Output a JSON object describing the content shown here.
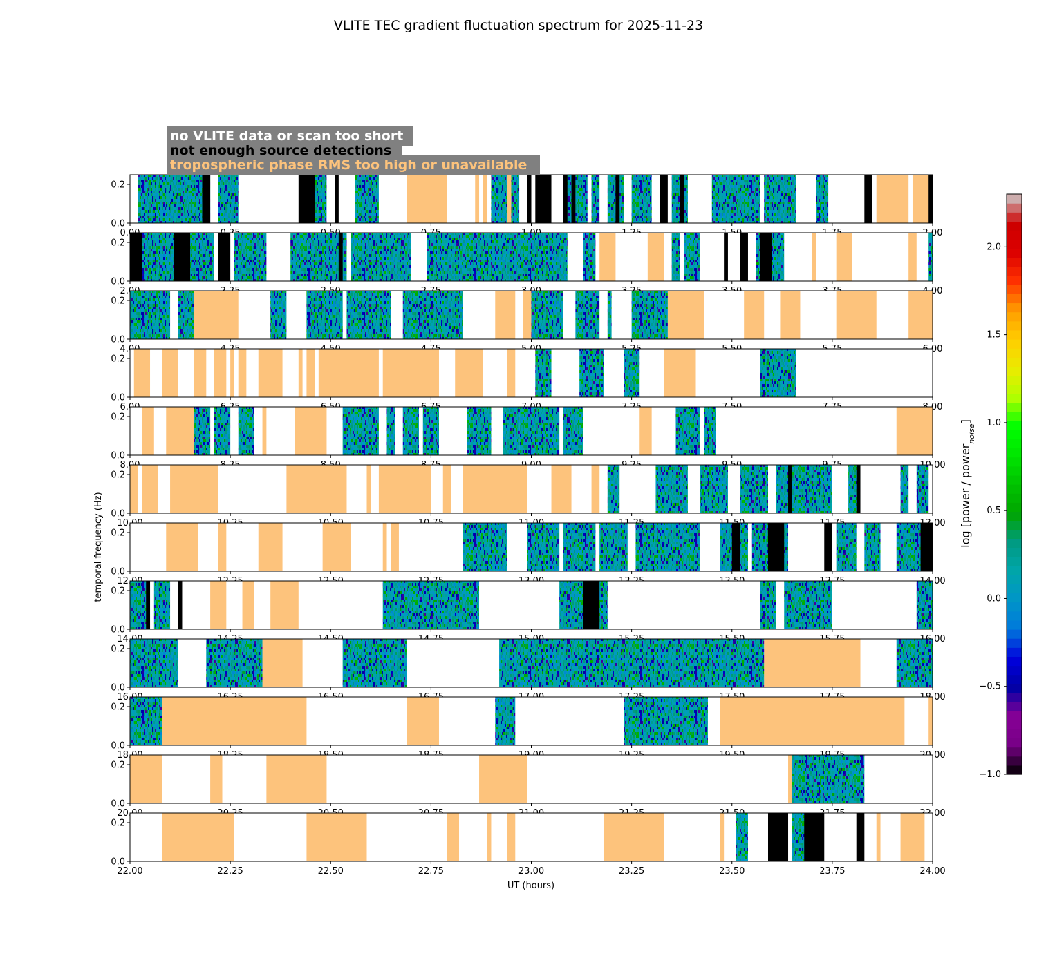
{
  "chart_data": {
    "type": "heatmap",
    "title": "VLITE TEC gradient fluctuation spectrum for 2025-11-23",
    "xlabel": "UT (hours)",
    "ylabel": "temporal frequency (Hz)",
    "ylim": [
      0,
      0.25
    ],
    "y_ticks": [
      "0.0",
      "0.2"
    ],
    "colorbar": {
      "label": "log [power / power",
      "label_sub": "noise",
      "label_end": "]",
      "range": [
        -1.0,
        2.3
      ],
      "ticks": [
        "−1.0",
        "−0.5",
        "0.0",
        "0.5",
        "1.0",
        "1.5",
        "2.0"
      ],
      "tick_values": [
        -1.0,
        -0.5,
        0.0,
        0.5,
        1.0,
        1.5,
        2.0
      ],
      "colormap": "nipy_spectral"
    },
    "legend": [
      {
        "text": "no VLITE data or scan too short",
        "color": "#ffffff"
      },
      {
        "text": "not enough source detections",
        "color": "#000000"
      },
      {
        "text": "tropospheric phase RMS too high or unavailable",
        "color": "#fdc37c"
      }
    ],
    "category_colors": {
      "no_data": "#ffffff",
      "no_detections": "#000000",
      "troposphere": "#fdc37c"
    },
    "panels": [
      {
        "start": 0,
        "end": 2,
        "ticks": [
          "0.00",
          "0.25",
          "0.50",
          "0.75",
          "1.00",
          "1.25",
          "1.50",
          "1.75",
          "2.00"
        ],
        "spectra": [
          [
            0.02,
            0.08
          ],
          [
            0.08,
            0.2
          ],
          [
            0.22,
            0.27
          ],
          [
            0.45,
            0.49
          ],
          [
            0.56,
            0.62
          ],
          [
            0.9,
            0.94
          ],
          [
            0.95,
            0.97
          ],
          [
            0.99,
            1.0
          ],
          [
            1.08,
            1.11
          ],
          [
            1.11,
            1.14
          ],
          [
            1.15,
            1.17
          ],
          [
            1.19,
            1.23
          ],
          [
            1.25,
            1.3
          ],
          [
            1.35,
            1.39
          ],
          [
            1.45,
            1.57
          ],
          [
            1.58,
            1.61
          ],
          [
            1.61,
            1.66
          ],
          [
            1.71,
            1.74
          ]
        ],
        "black": [
          [
            0.18,
            0.2
          ],
          [
            0.42,
            0.46
          ],
          [
            0.51,
            0.52
          ],
          [
            0.99,
            1.0
          ],
          [
            1.01,
            1.05
          ],
          [
            1.08,
            1.09
          ],
          [
            1.1,
            1.11
          ],
          [
            1.21,
            1.22
          ],
          [
            1.32,
            1.34
          ],
          [
            1.37,
            1.38
          ],
          [
            1.83,
            1.85
          ],
          [
            1.99,
            2.0
          ]
        ],
        "orange": [
          [
            0.69,
            0.79
          ],
          [
            0.86,
            0.87
          ],
          [
            0.88,
            0.89
          ],
          [
            0.92,
            0.96
          ],
          [
            1.86,
            1.94
          ],
          [
            1.95,
            2.0
          ]
        ]
      },
      {
        "start": 2,
        "end": 4,
        "ticks": [
          "2.00",
          "2.25",
          "2.50",
          "2.75",
          "3.00",
          "3.25",
          "3.50",
          "3.75",
          "4.00"
        ],
        "spectra": [
          [
            2.03,
            2.21
          ],
          [
            2.26,
            2.34
          ],
          [
            2.4,
            2.54
          ],
          [
            2.55,
            2.7
          ],
          [
            2.74,
            3.09
          ],
          [
            3.13,
            3.16
          ],
          [
            3.35,
            3.37
          ],
          [
            3.38,
            3.42
          ],
          [
            3.56,
            3.63
          ],
          [
            3.99,
            4.0
          ]
        ],
        "black": [
          [
            2.0,
            2.03
          ],
          [
            2.11,
            2.15
          ],
          [
            2.22,
            2.25
          ],
          [
            2.52,
            2.53
          ],
          [
            3.48,
            3.49
          ],
          [
            3.52,
            3.54
          ],
          [
            3.57,
            3.6
          ]
        ],
        "orange": [
          [
            3.17,
            3.21
          ],
          [
            3.29,
            3.33
          ],
          [
            3.35,
            3.36
          ],
          [
            3.7,
            3.71
          ],
          [
            3.76,
            3.8
          ],
          [
            3.94,
            3.96
          ]
        ]
      },
      {
        "start": 4,
        "end": 6,
        "ticks": [
          "4.00",
          "4.25",
          "4.50",
          "4.75",
          "5.00",
          "5.25",
          "5.50",
          "5.75",
          "6.00"
        ],
        "spectra": [
          [
            4.0,
            4.1
          ],
          [
            4.12,
            4.16
          ],
          [
            4.35,
            4.39
          ],
          [
            4.44,
            4.53
          ],
          [
            4.54,
            4.65
          ],
          [
            4.68,
            4.83
          ],
          [
            5.0,
            5.08
          ],
          [
            5.11,
            5.17
          ],
          [
            5.19,
            5.2
          ],
          [
            5.25,
            5.34
          ]
        ],
        "black": [],
        "orange": [
          [
            4.16,
            4.27
          ],
          [
            4.91,
            4.96
          ],
          [
            4.98,
            5.0
          ],
          [
            5.34,
            5.43
          ],
          [
            5.53,
            5.58
          ],
          [
            5.62,
            5.67
          ],
          [
            5.76,
            5.86
          ],
          [
            5.94,
            6.0
          ]
        ]
      },
      {
        "start": 6,
        "end": 8,
        "ticks": [
          "6.00",
          "6.25",
          "6.50",
          "6.75",
          "7.00",
          "7.25",
          "7.50",
          "7.75",
          "8.00"
        ],
        "spectra": [
          [
            7.01,
            7.05
          ],
          [
            7.12,
            7.18
          ],
          [
            7.23,
            7.27
          ],
          [
            7.57,
            7.66
          ]
        ],
        "black": [],
        "orange": [
          [
            6.01,
            6.05
          ],
          [
            6.08,
            6.12
          ],
          [
            6.16,
            6.19
          ],
          [
            6.21,
            6.24
          ],
          [
            6.25,
            6.26
          ],
          [
            6.27,
            6.29
          ],
          [
            6.32,
            6.38
          ],
          [
            6.42,
            6.43
          ],
          [
            6.44,
            6.46
          ],
          [
            6.47,
            6.62
          ],
          [
            6.63,
            6.77
          ],
          [
            6.81,
            6.88
          ],
          [
            6.94,
            6.96
          ],
          [
            7.33,
            7.41
          ]
        ]
      },
      {
        "start": 8,
        "end": 10,
        "ticks": [
          "8.00",
          "8.25",
          "8.50",
          "8.75",
          "9.00",
          "9.25",
          "9.50",
          "9.75",
          "10.00"
        ],
        "spectra": [
          [
            8.16,
            8.2
          ],
          [
            8.21,
            8.25
          ],
          [
            8.27,
            8.31
          ],
          [
            8.53,
            8.62
          ],
          [
            8.64,
            8.66
          ],
          [
            8.68,
            8.72
          ],
          [
            8.73,
            8.77
          ],
          [
            8.84,
            8.9
          ],
          [
            8.93,
            8.97
          ],
          [
            8.97,
            9.07
          ],
          [
            9.08,
            9.13
          ],
          [
            9.36,
            9.42
          ],
          [
            9.43,
            9.46
          ]
        ],
        "black": [],
        "orange": [
          [
            8.03,
            8.06
          ],
          [
            8.09,
            8.16
          ],
          [
            8.33,
            8.34
          ],
          [
            8.41,
            8.49
          ],
          [
            9.27,
            9.3
          ],
          [
            9.91,
            10.0
          ]
        ]
      },
      {
        "start": 10,
        "end": 12,
        "ticks": [
          "10.00",
          "10.25",
          "10.50",
          "10.75",
          "11.00",
          "11.25",
          "11.50",
          "11.75",
          "12.00"
        ],
        "spectra": [
          [
            11.19,
            11.22
          ],
          [
            11.31,
            11.39
          ],
          [
            11.42,
            11.49
          ],
          [
            11.52,
            11.59
          ],
          [
            11.61,
            11.75
          ],
          [
            11.79,
            11.82
          ],
          [
            11.92,
            11.94
          ],
          [
            11.96,
            11.99
          ]
        ],
        "black": [
          [
            11.64,
            11.65
          ],
          [
            11.81,
            11.82
          ]
        ],
        "orange": [
          [
            10.0,
            10.02
          ],
          [
            10.03,
            10.07
          ],
          [
            10.1,
            10.22
          ],
          [
            10.39,
            10.54
          ],
          [
            10.59,
            10.6
          ],
          [
            10.62,
            10.75
          ],
          [
            10.78,
            10.8
          ],
          [
            10.83,
            10.99
          ],
          [
            11.05,
            11.1
          ],
          [
            11.15,
            11.17
          ]
        ]
      },
      {
        "start": 12,
        "end": 14,
        "ticks": [
          "12.00",
          "12.25",
          "12.50",
          "12.75",
          "13.00",
          "13.25",
          "13.50",
          "13.75",
          "14.00"
        ],
        "spectra": [
          [
            12.83,
            12.94
          ],
          [
            12.99,
            13.07
          ],
          [
            13.08,
            13.16
          ],
          [
            13.17,
            13.24
          ],
          [
            13.26,
            13.42
          ],
          [
            13.47,
            13.54
          ],
          [
            13.55,
            13.64
          ],
          [
            13.76,
            13.81
          ],
          [
            13.83,
            13.87
          ],
          [
            13.91,
            14.0
          ]
        ],
        "black": [
          [
            13.5,
            13.52
          ],
          [
            13.59,
            13.63
          ],
          [
            13.73,
            13.75
          ],
          [
            13.97,
            14.0
          ]
        ],
        "orange": [
          [
            12.09,
            12.17
          ],
          [
            12.22,
            12.24
          ],
          [
            12.32,
            12.38
          ],
          [
            12.48,
            12.55
          ],
          [
            12.63,
            12.64
          ],
          [
            12.65,
            12.67
          ]
        ]
      },
      {
        "start": 14,
        "end": 16,
        "ticks": [
          "14.00",
          "14.25",
          "14.50",
          "14.75",
          "15.00",
          "15.25",
          "15.50",
          "15.75",
          "16.00"
        ],
        "spectra": [
          [
            14.0,
            14.05
          ],
          [
            14.06,
            14.08
          ],
          [
            14.08,
            14.1
          ],
          [
            14.63,
            14.87
          ],
          [
            15.07,
            15.19
          ],
          [
            15.57,
            15.61
          ],
          [
            15.63,
            15.75
          ],
          [
            15.96,
            16.0
          ]
        ],
        "black": [
          [
            14.04,
            14.05
          ],
          [
            14.12,
            14.13
          ],
          [
            15.13,
            15.17
          ]
        ],
        "orange": [
          [
            14.2,
            14.24
          ],
          [
            14.28,
            14.31
          ],
          [
            14.35,
            14.42
          ],
          [
            15.11,
            15.13
          ],
          [
            15.18,
            15.19
          ]
        ]
      },
      {
        "start": 16,
        "end": 18,
        "ticks": [
          "16.00",
          "16.25",
          "16.50",
          "16.75",
          "17.00",
          "17.25",
          "17.50",
          "17.75",
          "18.00"
        ],
        "spectra": [
          [
            16.0,
            16.12
          ],
          [
            16.19,
            16.33
          ],
          [
            16.53,
            16.69
          ],
          [
            16.92,
            17.58
          ],
          [
            17.91,
            18.0
          ]
        ],
        "black": [],
        "orange": [
          [
            16.33,
            16.43
          ],
          [
            17.58,
            17.82
          ]
        ]
      },
      {
        "start": 18,
        "end": 20,
        "ticks": [
          "18.00",
          "18.25",
          "18.50",
          "18.75",
          "19.00",
          "19.25",
          "19.50",
          "19.75",
          "20.00"
        ],
        "spectra": [
          [
            18.0,
            18.08
          ],
          [
            18.91,
            18.96
          ],
          [
            19.23,
            19.44
          ]
        ],
        "black": [],
        "orange": [
          [
            18.08,
            18.44
          ],
          [
            18.69,
            18.77
          ],
          [
            19.47,
            19.93
          ],
          [
            19.99,
            20.0
          ]
        ]
      },
      {
        "start": 20,
        "end": 22,
        "ticks": [
          "20.00",
          "20.25",
          "20.50",
          "20.75",
          "21.00",
          "21.25",
          "21.50",
          "21.75",
          "22.00"
        ],
        "spectra": [
          [
            21.65,
            21.83
          ]
        ],
        "black": [],
        "orange": [
          [
            20.0,
            20.08
          ],
          [
            20.2,
            20.23
          ],
          [
            20.34,
            20.49
          ],
          [
            20.87,
            20.99
          ],
          [
            21.64,
            21.65
          ]
        ]
      },
      {
        "start": 22,
        "end": 24,
        "ticks": [
          "22.00",
          "22.25",
          "22.50",
          "22.75",
          "23.00",
          "23.25",
          "23.50",
          "23.75",
          "24.00"
        ],
        "spectra": [
          [
            23.51,
            23.54
          ],
          [
            23.65,
            23.72
          ]
        ],
        "black": [
          [
            23.59,
            23.64
          ],
          [
            23.68,
            23.73
          ],
          [
            23.81,
            23.83
          ]
        ],
        "orange": [
          [
            22.08,
            22.26
          ],
          [
            22.44,
            22.59
          ],
          [
            22.79,
            22.82
          ],
          [
            22.89,
            22.9
          ],
          [
            22.94,
            22.96
          ],
          [
            23.18,
            23.33
          ],
          [
            23.47,
            23.48
          ],
          [
            23.86,
            23.87
          ],
          [
            23.92,
            23.98
          ]
        ]
      }
    ]
  }
}
